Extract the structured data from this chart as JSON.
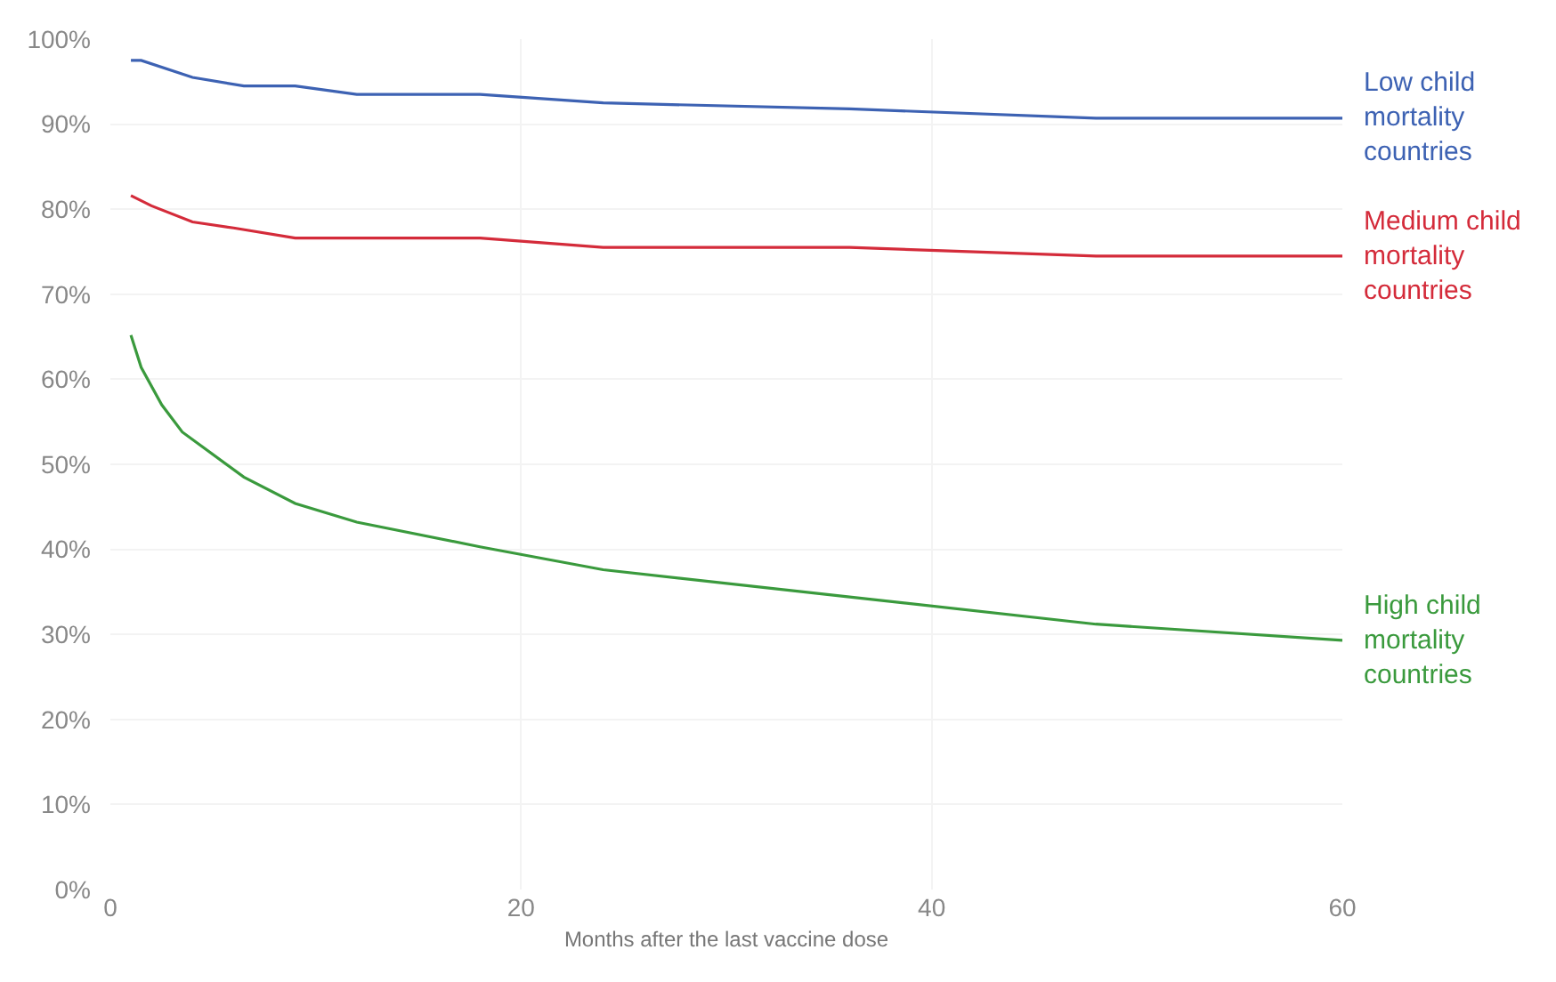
{
  "chart_data": {
    "type": "line",
    "xlabel": "Months after the last vaccine dose",
    "xlim": [
      0,
      60
    ],
    "xticks": [
      0,
      20,
      40,
      60
    ],
    "ylim": [
      0,
      100
    ],
    "yticks": [
      {
        "value": 0,
        "label": "0%"
      },
      {
        "value": 10,
        "label": "10%"
      },
      {
        "value": 20,
        "label": "20%"
      },
      {
        "value": 30,
        "label": "30%"
      },
      {
        "value": 40,
        "label": "40%"
      },
      {
        "value": 50,
        "label": "50%"
      },
      {
        "value": 60,
        "label": "60%"
      },
      {
        "value": 70,
        "label": "70%"
      },
      {
        "value": 80,
        "label": "80%"
      },
      {
        "value": 90,
        "label": "90%"
      },
      {
        "value": 100,
        "label": "100%"
      }
    ],
    "grid": true,
    "legend": false,
    "series": [
      {
        "name": "Low child mortality countries",
        "color": "#3d62b3",
        "x": [
          1,
          1.5,
          4,
          6.5,
          9,
          12,
          18,
          24,
          36,
          48,
          60
        ],
        "values": [
          97.5,
          97.5,
          95.5,
          94.5,
          94.5,
          93.5,
          93.5,
          92.5,
          91.8,
          90.7,
          90.7
        ]
      },
      {
        "name": "Medium child mortality countries",
        "color": "#d42b3a",
        "x": [
          1,
          2,
          4,
          6,
          9,
          18,
          24,
          36,
          48,
          60
        ],
        "values": [
          81.6,
          80.4,
          78.5,
          77.8,
          76.6,
          76.6,
          75.5,
          75.5,
          74.5,
          74.5
        ]
      },
      {
        "name": "High child mortality countries",
        "color": "#3a9a3d",
        "x": [
          1,
          1.5,
          2.5,
          3.5,
          6.5,
          9,
          12,
          18,
          24,
          36,
          48,
          60
        ],
        "values": [
          65.2,
          61.4,
          57,
          53.8,
          48.5,
          45.4,
          43.2,
          40.3,
          37.6,
          34.4,
          31.2,
          29.3
        ]
      }
    ]
  }
}
